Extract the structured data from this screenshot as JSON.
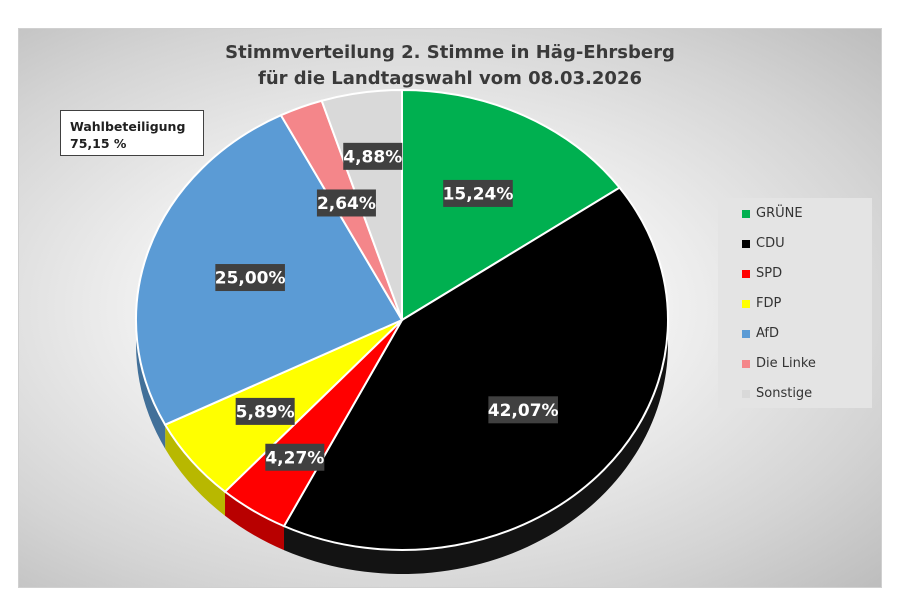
{
  "chart_data": {
    "type": "pie",
    "title_lines": [
      "Stimmverteilung 2. Stimme in Häg-Ehrsberg",
      "für die Landtagswahl vom 08.03.2026"
    ],
    "categories": [
      "GRÜNE",
      "CDU",
      "SPD",
      "FDP",
      "AfD",
      "Die Linke",
      "Sonstige"
    ],
    "values": [
      15.24,
      42.07,
      4.27,
      5.89,
      25.0,
      2.64,
      4.88
    ],
    "value_labels": [
      "15,24%",
      "42,07%",
      "4,27%",
      "5,89%",
      "25,00%",
      "2,64%",
      "4,88%"
    ],
    "colors": [
      "#00B050",
      "#000000",
      "#FF0000",
      "#FFFF00",
      "#5B9BD5",
      "#F4868A",
      "#D9D9D9"
    ],
    "legend_position": "right",
    "style": "3d-tilted-pie",
    "annotation": {
      "line1": "Wahlbeteiligung",
      "line2": "75,15 %"
    }
  }
}
